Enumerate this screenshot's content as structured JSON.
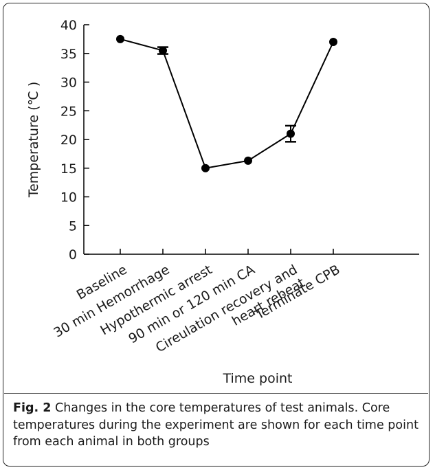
{
  "chart_data": {
    "type": "line",
    "categories": [
      "Baseline",
      "30 min Hemorrhage",
      "Hypothermic arrest",
      "90 min or 120 min CA",
      "Cireulation recovery and heart rebeat",
      "Terminate CPB"
    ],
    "category_lines": [
      [
        "Baseline"
      ],
      [
        "30 min Hemorrhage"
      ],
      [
        "Hypothermic arrest"
      ],
      [
        "90 min or 120 min CA"
      ],
      [
        "Cireulation recovery and",
        "heart rebeat"
      ],
      [
        "Terminate CPB"
      ]
    ],
    "values": [
      37.5,
      35.5,
      15.0,
      16.3,
      21.0,
      37.0
    ],
    "errors": [
      0,
      0.6,
      0,
      0,
      1.4,
      0
    ],
    "ylabel": "Temperature (℃ )",
    "xlabel": "Time point",
    "ylim": [
      0,
      40
    ],
    "yticks": [
      0,
      5,
      10,
      15,
      20,
      25,
      30,
      35,
      40
    ],
    "line_color": "#000000",
    "marker_color": "#000000"
  },
  "caption": {
    "label": "Fig. 2",
    "text": " Changes in the core temperatures of test animals. Core temperatures during the experiment are shown for each time point from each animal in both groups"
  }
}
